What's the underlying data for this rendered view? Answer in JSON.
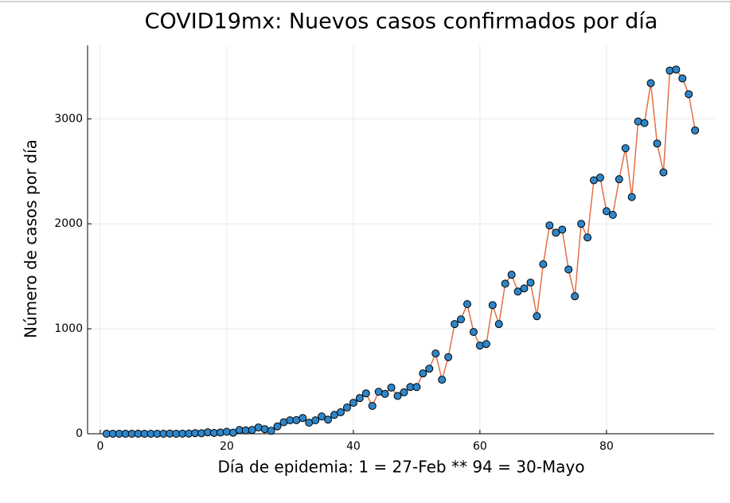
{
  "chart_data": {
    "type": "line",
    "title": "COVID19mx: Nuevos casos confirmados por día",
    "x_label": "Día de epidemia: 1 = 27-Feb ** 94 = 30-Mayo",
    "y_label": "Número de casos por día",
    "x": [
      1,
      2,
      3,
      4,
      5,
      6,
      7,
      8,
      9,
      10,
      11,
      12,
      13,
      14,
      15,
      16,
      17,
      18,
      19,
      20,
      21,
      22,
      23,
      24,
      25,
      26,
      27,
      28,
      29,
      30,
      31,
      32,
      33,
      34,
      35,
      36,
      37,
      38,
      39,
      40,
      41,
      42,
      43,
      44,
      45,
      46,
      47,
      48,
      49,
      50,
      51,
      52,
      53,
      54,
      55,
      56,
      57,
      58,
      59,
      60,
      61,
      62,
      63,
      64,
      65,
      66,
      67,
      68,
      69,
      70,
      71,
      72,
      73,
      74,
      75,
      76,
      77,
      78,
      79,
      80,
      81,
      82,
      83,
      84,
      85,
      86,
      87,
      88,
      89,
      90,
      91,
      92,
      93,
      94
    ],
    "series": [
      {
        "color": "#e26f46",
        "marker_color": "#2e86c9",
        "values": [
          0,
          0,
          0,
          0,
          0,
          1,
          0,
          0,
          0,
          0,
          2,
          0,
          1,
          2,
          6,
          5,
          14,
          8,
          12,
          19,
          10,
          36,
          32,
          36,
          60,
          44,
          28,
          70,
          110,
          128,
          130,
          150,
          105,
          128,
          165,
          135,
          180,
          205,
          250,
          295,
          340,
          385,
          265,
          400,
          380,
          440,
          360,
          395,
          445,
          445,
          575,
          620,
          765,
          515,
          730,
          1045,
          1090,
          1235,
          970,
          840,
          855,
          1225,
          1045,
          1430,
          1515,
          1355,
          1385,
          1440,
          1120,
          1615,
          1985,
          1915,
          1945,
          1565,
          1310,
          2000,
          1870,
          2415,
          2440,
          2120,
          2085,
          2425,
          2720,
          2255,
          2975,
          2960,
          3340,
          2765,
          2490,
          3460,
          3470,
          3385,
          3235,
          2890
        ]
      }
    ],
    "xlim": [
      -2,
      97
    ],
    "xticks": [
      0,
      20,
      40,
      60,
      80
    ],
    "ylim": [
      0,
      3700
    ],
    "yticks": [
      0,
      1000,
      2000,
      3000
    ],
    "grid": true
  }
}
